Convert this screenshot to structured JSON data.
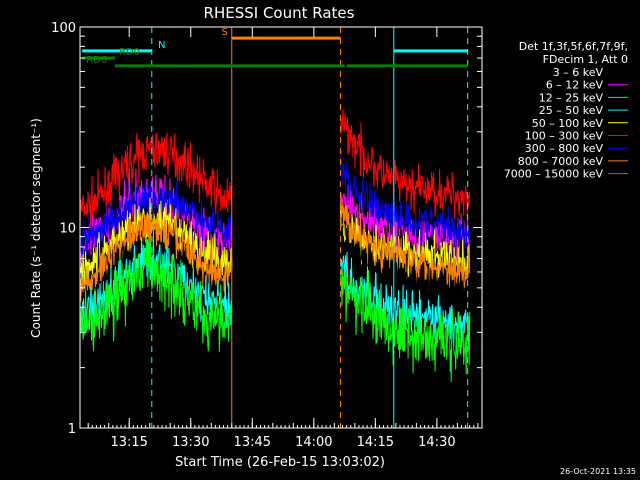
{
  "chart_data": {
    "type": "line",
    "title": "RHESSI Count Rates",
    "xlabel": "Start Time (26-Feb-15 13:03:02)",
    "ylabel": "Count Rate (s⁻¹ detector segment⁻¹)",
    "yscale": "log",
    "ylim": [
      1,
      100
    ],
    "xlim_minutes_after_13:03:02": [
      0,
      98
    ],
    "yticks": [
      "1",
      "10",
      "100"
    ],
    "xticks": [
      {
        "label": "13:15",
        "minute": 12
      },
      {
        "label": "13:30",
        "minute": 27
      },
      {
        "label": "13:45",
        "minute": 42
      },
      {
        "label": "14:00",
        "minute": 57
      },
      {
        "label": "14:15",
        "minute": 72
      },
      {
        "label": "14:30",
        "minute": 87
      }
    ],
    "legend": {
      "placement": "right",
      "header": [
        "Det 1f,3f,5f,6f,7f,9f,",
        "FDecim 1, Att 0"
      ],
      "entries": [
        {
          "label": "3 – 6 keV",
          "color": "#000000"
        },
        {
          "label": "6 – 12 keV",
          "color": "#ff00ff"
        },
        {
          "label": "12 – 25 keV",
          "color": "#00ff00"
        },
        {
          "label": "25 – 50 keV",
          "color": "#00ffff"
        },
        {
          "label": "50 – 100 keV",
          "color": "#ffff00"
        },
        {
          "label": "100 – 300 keV",
          "color": "#ff0000"
        },
        {
          "label": "300 – 800 keV",
          "color": "#0000ff"
        },
        {
          "label": "800 – 7000 keV",
          "color": "#ff8000"
        },
        {
          "label": "7000 – 15000 keV",
          "color": "#808000"
        }
      ]
    },
    "series": [
      {
        "name": "100 – 300 keV",
        "color": "#ff0000",
        "noise": 0.12,
        "segments": [
          {
            "t": [
              0,
              4,
              8,
              12,
              16,
              20,
              24,
              27,
              30,
              33,
              36,
              37
            ],
            "y": [
              12,
              13.5,
              17,
              21,
              24,
              24.5,
              22,
              20,
              17,
              15,
              13.5,
              14
            ]
          },
          {
            "t": [
              63.5,
              65,
              67,
              70,
              73,
              76,
              80,
              84,
              88,
              92,
              95
            ],
            "y": [
              34,
              30,
              26,
              22,
              19,
              17,
              16,
              15.5,
              15,
              14.5,
              14.3
            ]
          }
        ]
      },
      {
        "name": "6 – 12 keV",
        "color": "#ff00ff",
        "noise": 0.13,
        "segments": [
          {
            "t": [
              0,
              4,
              8,
              12,
              16,
              20,
              24,
              27,
              30,
              33,
              36,
              37
            ],
            "y": [
              7.5,
              9,
              11,
              13.5,
              15,
              14,
              12,
              11,
              9.5,
              8.8,
              8,
              9
            ]
          },
          {
            "t": [
              63.5,
              66,
              70,
              75,
              80,
              85,
              90,
              95
            ],
            "y": [
              14,
              12.5,
              11,
              10,
              9.5,
              9,
              8.8,
              8.7
            ]
          }
        ]
      },
      {
        "name": "300 – 800 keV",
        "color": "#0000ff",
        "noise": 0.11,
        "segments": [
          {
            "t": [
              0,
              4,
              8,
              12,
              16,
              20,
              24,
              27,
              30,
              33,
              36,
              37
            ],
            "y": [
              8.5,
              9.5,
              11,
              12.5,
              14,
              13.5,
              12.5,
              12,
              11,
              10,
              9.5,
              10
            ]
          },
          {
            "t": [
              63.5,
              66,
              70,
              75,
              80,
              85,
              90,
              95
            ],
            "y": [
              20,
              16,
              13.5,
              12,
              11,
              10.5,
              10,
              9.5
            ]
          }
        ]
      },
      {
        "name": "50 – 100 keV",
        "color": "#ffff00",
        "noise": 0.12,
        "segments": [
          {
            "t": [
              0,
              4,
              8,
              12,
              16,
              20,
              24,
              27,
              30,
              33,
              36,
              37
            ],
            "y": [
              6,
              7,
              8.5,
              10,
              11,
              10.5,
              9.5,
              8.5,
              7.5,
              7,
              6.5,
              7
            ]
          },
          {
            "t": [
              63.5,
              66,
              70,
              75,
              80,
              85,
              90,
              95
            ],
            "y": [
              11,
              9.5,
              8.5,
              8,
              7.5,
              7.2,
              7,
              6.8
            ]
          }
        ]
      },
      {
        "name": "800 – 7000 keV",
        "color": "#ff8000",
        "noise": 0.11,
        "segments": [
          {
            "t": [
              0,
              4,
              8,
              12,
              16,
              20,
              24,
              27,
              30,
              33,
              36,
              37
            ],
            "y": [
              4.8,
              5.8,
              7.5,
              9,
              10,
              9.5,
              8.5,
              7.5,
              6.5,
              6,
              5.5,
              6
            ]
          },
          {
            "t": [
              63.5,
              66,
              70,
              75,
              80,
              85,
              90,
              95
            ],
            "y": [
              13,
              10,
              8.5,
              7.5,
              7,
              6.5,
              6.2,
              6
            ]
          }
        ]
      },
      {
        "name": "3 – 6 keV",
        "color": "#000000",
        "noise": 0.13,
        "segments": [
          {
            "t": [
              0,
              4,
              8,
              12,
              16,
              20,
              24,
              27,
              30,
              33,
              36,
              37
            ],
            "y": [
              4,
              4.5,
              5.5,
              6.8,
              7.5,
              7,
              6.5,
              6,
              5.2,
              4.8,
              4.5,
              5
            ]
          },
          {
            "t": [
              63.5,
              66,
              70,
              75,
              80,
              85,
              90,
              95
            ],
            "y": [
              9,
              7.5,
              6.2,
              5.5,
              5.2,
              5,
              4.8,
              4.6
            ]
          }
        ]
      },
      {
        "name": "25 – 50 keV",
        "color": "#00ffff",
        "noise": 0.13,
        "segments": [
          {
            "t": [
              0,
              4,
              8,
              12,
              16,
              20,
              24,
              27,
              30,
              33,
              36,
              37
            ],
            "y": [
              3.5,
              4.2,
              5,
              6.2,
              7,
              6.5,
              5.8,
              5,
              4.5,
              4.2,
              4,
              4.3
            ]
          },
          {
            "t": [
              63.5,
              66,
              70,
              75,
              80,
              85,
              90,
              95
            ],
            "y": [
              6.5,
              5.5,
              4.5,
              4,
              3.7,
              3.5,
              3.4,
              3.3
            ]
          }
        ]
      },
      {
        "name": "12 – 25 keV",
        "color": "#00ff00",
        "noise": 0.18,
        "segments": [
          {
            "t": [
              0,
              4,
              8,
              12,
              16,
              20,
              24,
              27,
              30,
              33,
              36,
              37
            ],
            "y": [
              3,
              3.5,
              4.3,
              5.5,
              6.2,
              5.8,
              5.2,
              4.5,
              3.8,
              3.4,
              3.2,
              3.5
            ]
          },
          {
            "t": [
              63.5,
              66,
              70,
              75,
              80,
              85,
              90,
              95
            ],
            "y": [
              5.5,
              4.5,
              3.8,
              3.3,
              3,
              2.8,
              2.7,
              2.6
            ]
          }
        ]
      }
    ],
    "annotations": {
      "vlines": [
        {
          "minute": 0,
          "color": "#00ffff",
          "style": "solid"
        },
        {
          "minute": 17.5,
          "color": "#00ffff",
          "style": "dashed"
        },
        {
          "minute": 37,
          "color": "#ff8000",
          "style": "solid"
        },
        {
          "minute": 63.5,
          "color": "#ff8000",
          "style": "dashed"
        },
        {
          "minute": 76.5,
          "color": "#00ffff",
          "style": "solid"
        },
        {
          "minute": 94.5,
          "color": "#00ffff",
          "style": "dashed"
        }
      ],
      "bars": [
        {
          "label": "N",
          "color": "#00ffff",
          "y": 76,
          "spans": [
            [
              0.5,
              17.5
            ],
            [
              76.5,
              94.5
            ]
          ],
          "label_minute": 19
        },
        {
          "label": "S",
          "color": "#ff8000",
          "y": 88,
          "spans": [
            [
              37,
              63.5
            ]
          ],
          "label_minute": 34.5
        },
        {
          "label": "RD0",
          "color": "#008000",
          "y": 70,
          "spans": [
            [
              0.5,
              8.5
            ]
          ],
          "label_minute": 9.5
        },
        {
          "label": "RD6",
          "color": "#008000",
          "y": 64,
          "spans": [
            [
              8.5,
              26.5
            ],
            [
              26.5,
              64.5
            ],
            [
              65,
              71.5
            ],
            [
              71.5,
              94.5
            ]
          ],
          "label_minute": 1.5
        }
      ]
    }
  },
  "footer_date": "26-Oct-2021 13:35"
}
